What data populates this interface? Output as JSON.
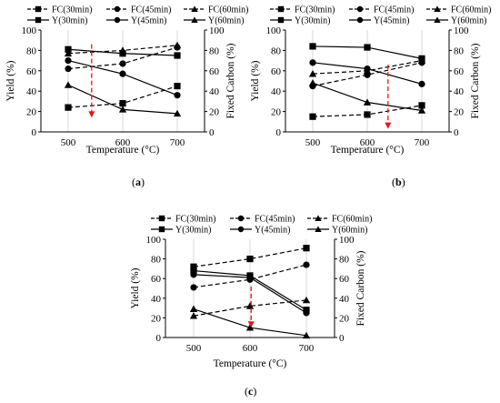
{
  "chart_data": [
    {
      "type": "line",
      "panel_label": "a",
      "xlabel": "Temperature (°C)",
      "ylabel_left": "Yield (%)",
      "ylabel_right": "Fixed Carbon (%)",
      "x": [
        500,
        600,
        700
      ],
      "xlim": [
        450,
        750
      ],
      "ylim": [
        0,
        100
      ],
      "yticks": [
        0,
        20,
        40,
        60,
        80,
        100
      ],
      "xticks": [
        500,
        600,
        700
      ],
      "grid": "vertical",
      "legend_position": "top",
      "series": [
        {
          "name": "FC(30min)",
          "axis": "right",
          "line": "dashed",
          "marker": "square",
          "values": [
            24,
            28,
            45
          ]
        },
        {
          "name": "FC(45min)",
          "axis": "right",
          "line": "dashed",
          "marker": "circle",
          "values": [
            62,
            67,
            83
          ]
        },
        {
          "name": "FC(60min)",
          "axis": "right",
          "line": "dashed",
          "marker": "triangle",
          "values": [
            77,
            80,
            85
          ]
        },
        {
          "name": "Y(30min)",
          "axis": "left",
          "line": "solid",
          "marker": "square",
          "values": [
            81,
            77,
            75
          ]
        },
        {
          "name": "Y(45min)",
          "axis": "left",
          "line": "solid",
          "marker": "circle",
          "values": [
            70,
            57,
            36
          ]
        },
        {
          "name": "Y(60min)",
          "axis": "left",
          "line": "solid",
          "marker": "triangle",
          "values": [
            46,
            22,
            18
          ]
        }
      ],
      "annotation": {
        "type": "red dashed arrow",
        "x": 543,
        "y_from": 86,
        "y_to": 14
      }
    },
    {
      "type": "line",
      "panel_label": "b",
      "xlabel": "Temperature (°C)",
      "ylabel_left": "Yield (%)",
      "ylabel_right": "Fixed Carbon (%)",
      "x": [
        500,
        600,
        700
      ],
      "xlim": [
        450,
        750
      ],
      "ylim": [
        0,
        100
      ],
      "yticks": [
        0,
        20,
        40,
        60,
        80,
        100
      ],
      "xticks": [
        500,
        600,
        700
      ],
      "grid": "vertical",
      "legend_position": "top",
      "series": [
        {
          "name": "FC(30min)",
          "axis": "right",
          "line": "dashed",
          "marker": "square",
          "values": [
            15,
            17,
            26
          ]
        },
        {
          "name": "FC(45min)",
          "axis": "right",
          "line": "dashed",
          "marker": "circle",
          "values": [
            45,
            56,
            68
          ]
        },
        {
          "name": "FC(60min)",
          "axis": "right",
          "line": "dashed",
          "marker": "triangle",
          "values": [
            57,
            60,
            70
          ]
        },
        {
          "name": "Y(30min)",
          "axis": "left",
          "line": "solid",
          "marker": "square",
          "values": [
            84,
            83,
            72
          ]
        },
        {
          "name": "Y(45min)",
          "axis": "left",
          "line": "solid",
          "marker": "circle",
          "values": [
            68,
            62,
            47
          ]
        },
        {
          "name": "Y(60min)",
          "axis": "left",
          "line": "solid",
          "marker": "triangle",
          "values": [
            48,
            29,
            21
          ]
        }
      ],
      "annotation": {
        "type": "red dashed arrow",
        "x": 638,
        "y_from": 66,
        "y_to": 3
      }
    },
    {
      "type": "line",
      "panel_label": "c",
      "xlabel": "Temperature (°C)",
      "ylabel_left": "Yield (%)",
      "ylabel_right": "Fixed Carbon (%)",
      "x": [
        500,
        600,
        700
      ],
      "xlim": [
        450,
        750
      ],
      "ylim": [
        0,
        100
      ],
      "yticks": [
        0,
        20,
        40,
        60,
        80,
        100
      ],
      "xticks": [
        500,
        600,
        700
      ],
      "grid": "vertical",
      "legend_position": "top",
      "series": [
        {
          "name": "FC(30min)",
          "axis": "right",
          "line": "dashed",
          "marker": "square",
          "values": [
            72,
            80,
            91
          ]
        },
        {
          "name": "FC(45min)",
          "axis": "right",
          "line": "dashed",
          "marker": "circle",
          "values": [
            51,
            59,
            74
          ]
        },
        {
          "name": "FC(60min)",
          "axis": "right",
          "line": "dashed",
          "marker": "triangle",
          "values": [
            22,
            32,
            38
          ]
        },
        {
          "name": "Y(30min)",
          "axis": "left",
          "line": "solid",
          "marker": "square",
          "values": [
            68,
            63,
            28
          ]
        },
        {
          "name": "Y(45min)",
          "axis": "left",
          "line": "solid",
          "marker": "circle",
          "values": [
            64,
            61,
            25
          ]
        },
        {
          "name": "Y(60min)",
          "axis": "left",
          "line": "solid",
          "marker": "triangle",
          "values": [
            29,
            10,
            2
          ]
        }
      ],
      "annotation": {
        "type": "red dashed arrow",
        "x": 602,
        "y_from": 52,
        "y_to": 10
      }
    }
  ],
  "colors": {
    "lines": "#000000",
    "grid": "#d9d9d9",
    "arrow": "#e8141b"
  }
}
